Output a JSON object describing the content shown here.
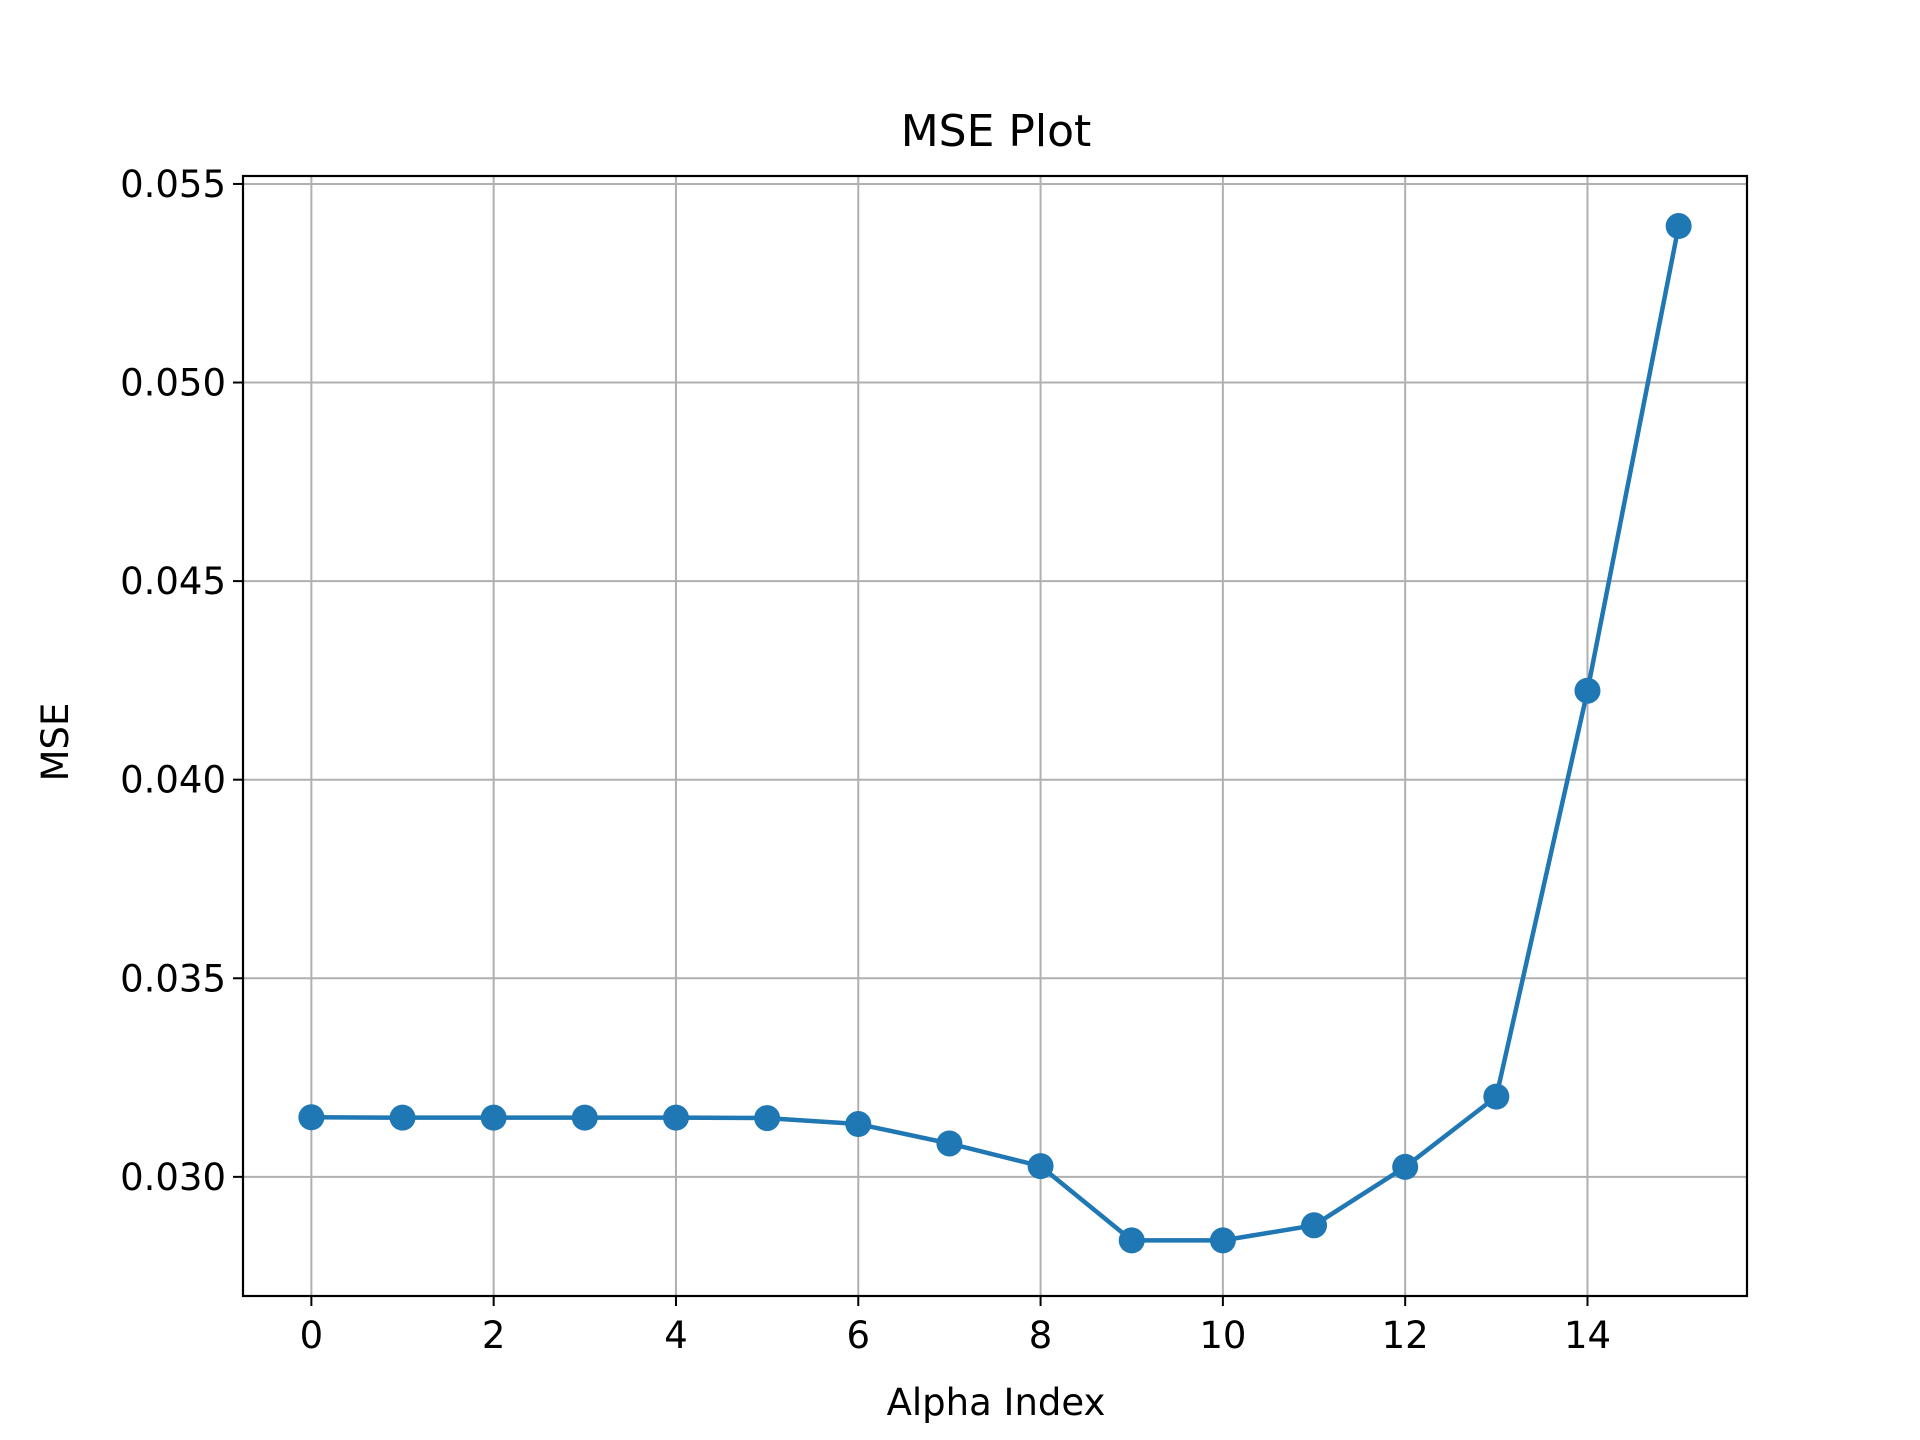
{
  "chart_data": {
    "type": "line",
    "title": "MSE Plot",
    "xlabel": "Alpha Index",
    "ylabel": "MSE",
    "x": [
      0,
      1,
      2,
      3,
      4,
      5,
      6,
      7,
      8,
      9,
      10,
      11,
      12,
      13,
      14,
      15
    ],
    "series": [
      {
        "color": "#1f77b4",
        "marker": "circle",
        "values": [
          0.0315,
          0.03149,
          0.03149,
          0.03149,
          0.03149,
          0.03148,
          0.03133,
          0.03084,
          0.03027,
          0.0284,
          0.0284,
          0.02878,
          0.03025,
          0.03202,
          0.04224,
          0.05394
        ]
      }
    ],
    "xlim": [
      -0.75,
      15.75
    ],
    "ylim": [
      0.027,
      0.0552
    ],
    "xticks": [
      0,
      2,
      4,
      6,
      8,
      10,
      12,
      14
    ],
    "xtick_labels": [
      "0",
      "2",
      "4",
      "6",
      "8",
      "10",
      "12",
      "14"
    ],
    "yticks": [
      0.03,
      0.035,
      0.04,
      0.045,
      0.05,
      0.055
    ],
    "ytick_labels": [
      "0.030",
      "0.035",
      "0.040",
      "0.045",
      "0.050",
      "0.055"
    ],
    "grid": true,
    "grid_color": "#b0b0b0",
    "legend": false
  }
}
